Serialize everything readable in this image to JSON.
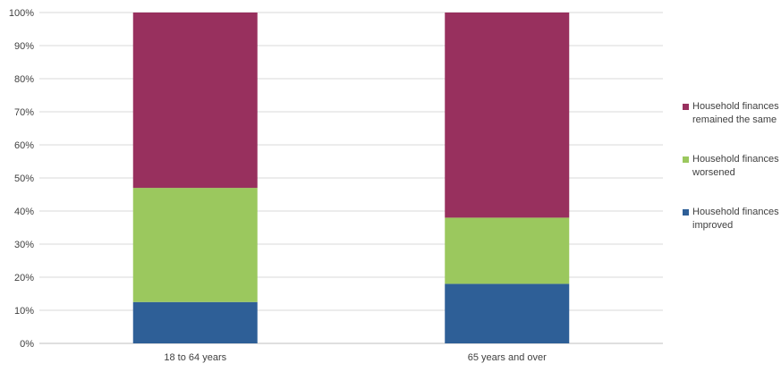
{
  "chart_data": {
    "type": "bar",
    "stacked": true,
    "categories": [
      "18 to 64 years",
      "65 years and over"
    ],
    "series": [
      {
        "name": "Household finances improved",
        "values": [
          12.5,
          18
        ],
        "color": "#2e5f97"
      },
      {
        "name": "Household finances worsened",
        "values": [
          34.5,
          20
        ],
        "color": "#9bc85e"
      },
      {
        "name": "Household finances remained the same",
        "values": [
          53,
          62
        ],
        "color": "#98305e"
      }
    ],
    "y_ticks": [
      "0%",
      "10%",
      "20%",
      "30%",
      "40%",
      "50%",
      "60%",
      "70%",
      "80%",
      "90%",
      "100%"
    ],
    "ylim": [
      0,
      100
    ],
    "grid": true,
    "legend_position": "right",
    "legend_order": [
      2,
      1,
      0
    ]
  }
}
